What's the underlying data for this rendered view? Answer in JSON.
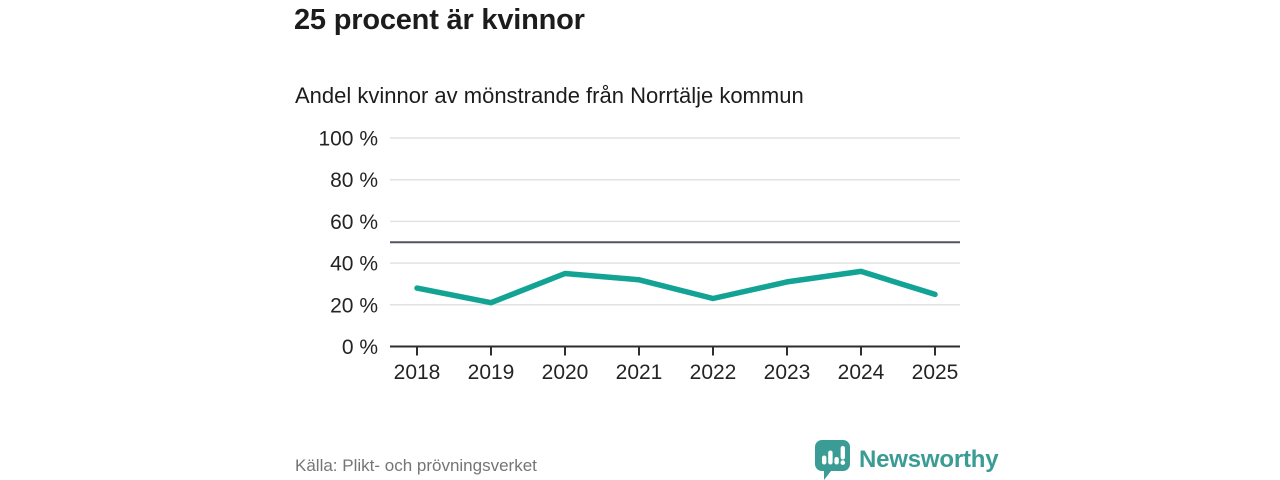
{
  "title": "25 procent är kvinnor",
  "subtitle": "Andel kvinnor av mönstrande från Norrtälje kommun",
  "source": "Källa: Plikt- och prövningsverket",
  "brand": {
    "name": "Newsworthy"
  },
  "colors": {
    "line": "#13a395",
    "reference_line": "#55555d",
    "grid": "#e2e2e2",
    "axis": "#2e2e2e",
    "text": "#242424",
    "muted_text": "#757575",
    "brand": "#3b9c95",
    "background": "#ffffff"
  },
  "chart_data": {
    "type": "line",
    "title": "25 procent är kvinnor",
    "subtitle": "Andel kvinnor av mönstrande från Norrtälje kommun",
    "x": [
      2018,
      2019,
      2020,
      2021,
      2022,
      2023,
      2024,
      2025
    ],
    "series": [
      {
        "name": "Andel kvinnor av mönstrande",
        "values": [
          28,
          21,
          35,
          32,
          23,
          31,
          36,
          25
        ],
        "color": "#13a395"
      }
    ],
    "unit": "%",
    "ylim": [
      0,
      100
    ],
    "yticks": [
      0,
      20,
      40,
      60,
      80,
      100
    ],
    "ytick_suffix": " %",
    "reference_line": 50,
    "grid": true,
    "legend": false,
    "source": "Källa: Plikt- och prövningsverket"
  }
}
